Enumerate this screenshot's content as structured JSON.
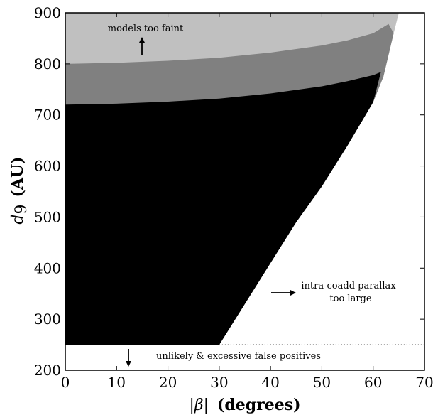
{
  "chart_data": {
    "type": "area",
    "xlabel_symbol": "|β|",
    "xlabel_units": "(degrees)",
    "ylabel_symbol": "d",
    "ylabel_subscript": "9",
    "ylabel_units": "(AU)",
    "xlim": [
      0,
      70
    ],
    "ylim": [
      200,
      900
    ],
    "xticks": [
      0,
      10,
      20,
      30,
      40,
      50,
      60,
      70
    ],
    "yticks": [
      200,
      300,
      400,
      500,
      600,
      700,
      800,
      900
    ],
    "grid": false,
    "colors": {
      "light_region": "#c0c0c0",
      "mid_region": "#808080",
      "dark_region": "#000000",
      "background": "#ffffff"
    },
    "boundaries": {
      "right_edge": {
        "x": [
          30,
          35,
          40,
          45,
          50,
          55,
          60,
          62,
          64,
          65
        ],
        "y": [
          250,
          330,
          410,
          490,
          560,
          640,
          725,
          775,
          860,
          900
        ]
      },
      "upper_limit": {
        "x": [
          0,
          10,
          20,
          30,
          40,
          50,
          55,
          60,
          63,
          65
        ],
        "y": [
          800,
          802,
          806,
          812,
          822,
          836,
          846,
          860,
          878,
          895
        ]
      },
      "mid_limit": {
        "x": [
          0,
          10,
          20,
          30,
          40,
          50,
          55,
          60,
          61.5
        ],
        "y": [
          720,
          722,
          726,
          732,
          742,
          756,
          766,
          778,
          784
        ]
      },
      "lower_limit": 250
    },
    "annotations": [
      {
        "id": "faint",
        "text": "models too faint"
      },
      {
        "id": "parallax_line1",
        "text": "intra-coadd parallax"
      },
      {
        "id": "parallax_line2",
        "text": "too large"
      },
      {
        "id": "false_pos",
        "text": "unlikely & excessive false positives"
      }
    ]
  }
}
